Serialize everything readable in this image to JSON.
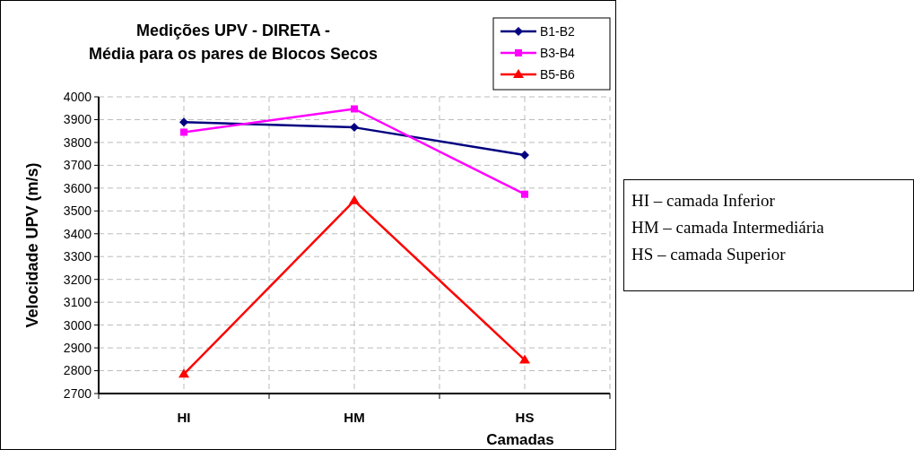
{
  "chart_data": {
    "type": "line",
    "title": "Medições UPV - DIRETA -\nMédia para os pares de Blocos Secos",
    "xlabel": "Camadas",
    "ylabel": "Velocidade UPV (m/s)",
    "categories": [
      "HI",
      "HM",
      "HS"
    ],
    "series": [
      {
        "name": "B1-B2",
        "color": "#000080",
        "marker": "diamond",
        "values": [
          3889,
          3866,
          3745
        ]
      },
      {
        "name": "B3-B4",
        "color": "#ff00ff",
        "marker": "square",
        "values": [
          3845,
          3947,
          3573
        ]
      },
      {
        "name": "B5-B6",
        "color": "#ff0000",
        "marker": "triangle",
        "values": [
          2785,
          3545,
          2847
        ]
      }
    ],
    "ylim": [
      2700,
      4000
    ],
    "yticks": [
      2700,
      2800,
      2900,
      3000,
      3100,
      3200,
      3300,
      3400,
      3500,
      3600,
      3700,
      3800,
      3900,
      4000
    ],
    "grid": true,
    "legend": "top right",
    "line_style": "solid",
    "annotations": [
      "HI – camada Inferior",
      "HM – camada Intermediária",
      "HS – camada Superior"
    ]
  }
}
